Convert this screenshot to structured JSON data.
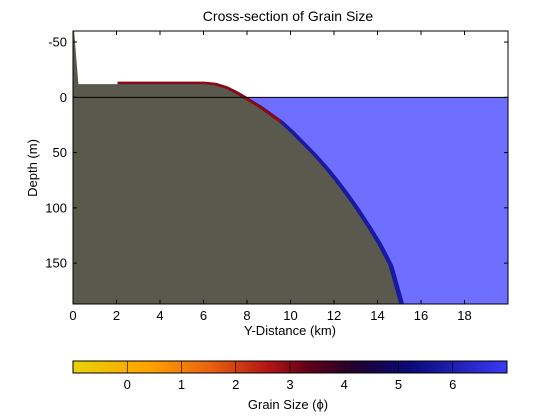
{
  "chart_data": {
    "type": "heatmap",
    "title": "Cross-section of Grain Size",
    "xlabel": "Y-Distance (km)",
    "ylabel": "Depth (m)",
    "xlim": [
      0,
      20
    ],
    "ylim": [
      -60,
      187
    ],
    "y_reversed": true,
    "xticks": [
      0,
      2,
      4,
      6,
      8,
      10,
      12,
      14,
      16,
      18
    ],
    "yticks": [
      -50,
      0,
      50,
      100,
      150
    ],
    "sea_level_depth": 0,
    "shelf_top_depth": -12,
    "seafloor_profile": {
      "x": [
        0.05,
        0.25,
        2,
        4,
        6,
        6.5,
        7,
        7.5,
        8,
        8.5,
        9,
        9.5,
        10,
        10.5,
        11,
        11.5,
        12,
        12.5,
        13,
        13.5,
        14,
        14.5,
        15,
        20
      ],
      "depth": [
        -60,
        -12,
        -12,
        -12,
        -12,
        -11,
        -8,
        -3,
        3,
        9,
        16,
        23,
        32,
        42,
        52,
        63,
        75,
        88,
        102,
        117,
        133,
        152,
        187,
        187
      ]
    },
    "colorbar": {
      "label": "Grain Size (ϕ)",
      "ticks": [
        0,
        1,
        2,
        3,
        4,
        5,
        6
      ],
      "range": [
        -1,
        7
      ],
      "colors": [
        "#e8d20a",
        "#ff9900",
        "#e05010",
        "#7a0a0a",
        "#2a0035",
        "#0a0a90",
        "#3a3af0"
      ]
    },
    "colors": {
      "sediment_basement": "#595a4d",
      "water": "#6e6eff",
      "deposit_coarse": "#b01010",
      "deposit_mid": "#600015",
      "deposit_fine": "#14149a"
    }
  }
}
